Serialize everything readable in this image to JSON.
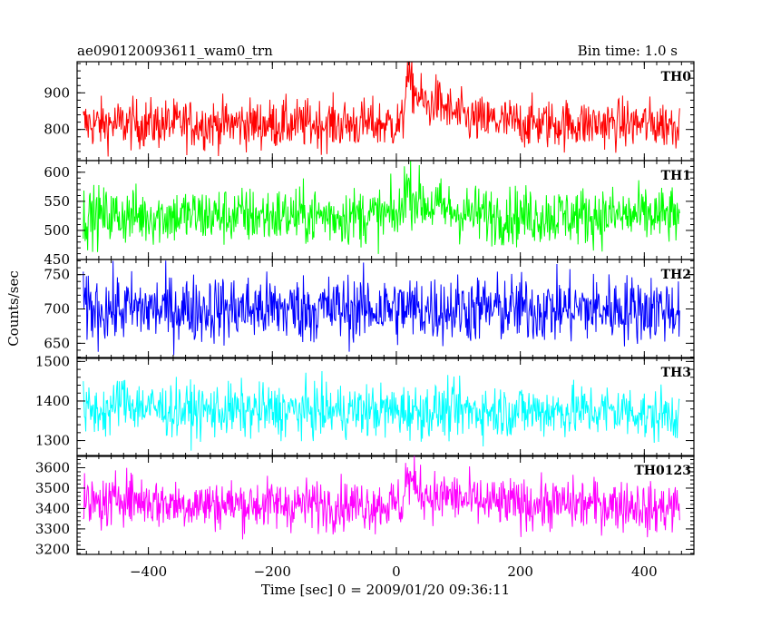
{
  "header": {
    "title": "ae090120093611_wam0_trn",
    "bin_time": "Bin time: 1.0 s"
  },
  "chart_data": {
    "type": "line",
    "title": "ae090120093611_wam0_trn",
    "subtitle": "Bin time: 1.0 s",
    "xlabel": "Time [sec] 0 = 2009/01/20 09:36:11",
    "ylabel": "Counts/sec",
    "xlim": [
      -515,
      480
    ],
    "x_range": [
      -505,
      457
    ],
    "x_ticks": [
      -400,
      -200,
      0,
      200,
      400
    ],
    "grid": false,
    "panels": [
      {
        "name": "TH0",
        "color": "#ff0000",
        "ylim": [
          715,
          985
        ],
        "y_ticks": [
          800,
          900
        ],
        "baseline": 815,
        "noise": 38,
        "events": [
          {
            "x": 15,
            "value": 950
          },
          {
            "x": 60,
            "value": 850
          },
          {
            "x": 150,
            "value": 820
          }
        ]
      },
      {
        "name": "TH1",
        "color": "#00ff00",
        "ylim": [
          450,
          620
        ],
        "y_ticks": [
          450,
          500,
          550,
          600
        ],
        "baseline": 525,
        "noise": 28,
        "events": [
          {
            "x": 12,
            "value": 580
          },
          {
            "x": 60,
            "value": 530
          }
        ]
      },
      {
        "name": "TH2",
        "color": "#0000ff",
        "ylim": [
          628,
          772
        ],
        "y_ticks": [
          650,
          700,
          750
        ],
        "baseline": 700,
        "noise": 28,
        "events": []
      },
      {
        "name": "TH3",
        "color": "#00ffff",
        "ylim": [
          1260,
          1510
        ],
        "y_ticks": [
          1300,
          1400,
          1500
        ],
        "baseline": 1375,
        "noise": 38,
        "events": [
          {
            "x": -450,
            "value": 1410
          },
          {
            "x": 400,
            "value": 1355
          }
        ]
      },
      {
        "name": "TH0123",
        "color": "#ff00ff",
        "ylim": [
          3175,
          3660
        ],
        "y_ticks": [
          3200,
          3300,
          3400,
          3500,
          3600
        ],
        "baseline": 3420,
        "noise": 70,
        "events": [
          {
            "x": -450,
            "value": 3480
          },
          {
            "x": 15,
            "value": 3560
          },
          {
            "x": 80,
            "value": 3450
          },
          {
            "x": 400,
            "value": 3380
          }
        ]
      }
    ]
  }
}
